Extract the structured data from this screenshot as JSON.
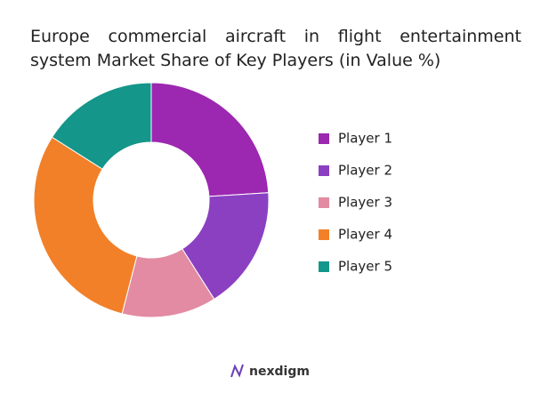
{
  "chart_data": {
    "type": "donut",
    "title": "Europe commercial aircraft in flight entertainment system Market Share of Key Players (in Value %)",
    "categories": [
      "Player 1",
      "Player 2",
      "Player 3",
      "Player 4",
      "Player 5"
    ],
    "values": [
      24,
      17,
      13,
      30,
      16
    ],
    "colors": [
      "#9c27b0",
      "#8b40c2",
      "#e28ba2",
      "#f28029",
      "#14968a"
    ],
    "legend": "right",
    "watermark": "nexdigm"
  }
}
